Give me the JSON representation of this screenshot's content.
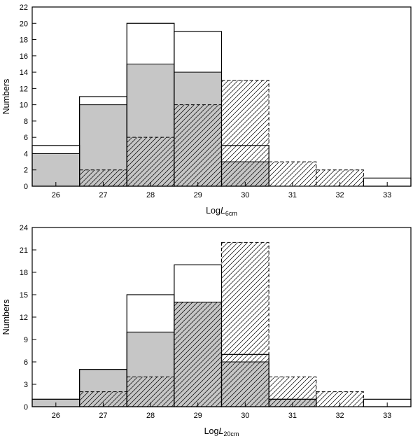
{
  "figure": {
    "background": "#ffffff",
    "axis_color": "#000000",
    "gray_fill": "#c6c6c6"
  },
  "chart_data": [
    {
      "type": "bar",
      "subtype": "histogram",
      "panel": "top",
      "ylabel": "Numbers",
      "xlabel": {
        "prefix": "Log",
        "italic": "L",
        "sub": "6cm"
      },
      "ylim": [
        0,
        22
      ],
      "ytick_step": 2,
      "x_start": 25.5,
      "bin_width": 1,
      "xtick_labels": [
        "26",
        "27",
        "28",
        "29",
        "30",
        "31",
        "32",
        "33"
      ],
      "grid": false,
      "legend": "none",
      "series": [
        {
          "name": "gray-filled",
          "style": "gray",
          "values": [
            4,
            10,
            15,
            14,
            3,
            0,
            0,
            0
          ]
        },
        {
          "name": "hatched-dashed",
          "style": "hatch",
          "values": [
            0,
            2,
            6,
            10,
            13,
            3,
            2,
            0
          ]
        },
        {
          "name": "open-solid",
          "style": "open",
          "values": [
            5,
            11,
            20,
            19,
            5,
            0,
            0,
            1
          ]
        }
      ]
    },
    {
      "type": "bar",
      "subtype": "histogram",
      "panel": "bottom",
      "ylabel": "Numbers",
      "xlabel": {
        "prefix": "Log",
        "italic": "L",
        "sub": "20cm"
      },
      "ylim": [
        0,
        24
      ],
      "ytick_step": 3,
      "x_start": 25.5,
      "bin_width": 1,
      "xtick_labels": [
        "26",
        "27",
        "28",
        "29",
        "30",
        "31",
        "32",
        "33"
      ],
      "grid": false,
      "legend": "none",
      "series": [
        {
          "name": "gray-filled",
          "style": "gray",
          "values": [
            1,
            5,
            10,
            14,
            6,
            1,
            0,
            0
          ]
        },
        {
          "name": "hatched-dashed",
          "style": "hatch",
          "values": [
            0,
            2,
            4,
            14,
            22,
            4,
            2,
            0
          ]
        },
        {
          "name": "open-solid",
          "style": "open",
          "values": [
            1,
            5,
            15,
            19,
            7,
            1,
            0,
            1
          ]
        }
      ]
    }
  ]
}
